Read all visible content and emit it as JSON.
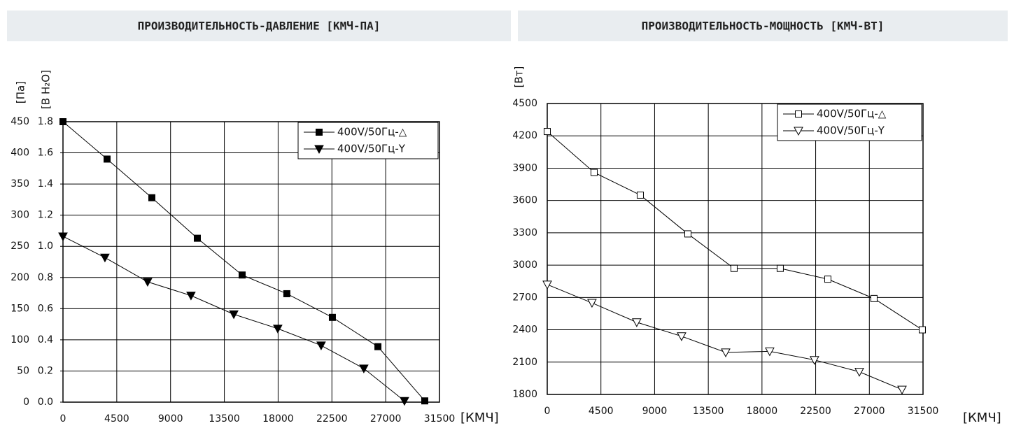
{
  "chart_data": [
    {
      "type": "line",
      "title": "ПРОИЗВОДИТЕЛЬНОСТЬ-ДАВЛЕНИЕ [КМЧ-ПА]",
      "xlabel": "[КМЧ]",
      "ylabel": "[Па]",
      "y2label": "[В H₂O]",
      "xlim": [
        0,
        31500
      ],
      "xticks": [
        0,
        4500,
        9000,
        13500,
        18000,
        22500,
        27000,
        31500
      ],
      "ylim": [
        0,
        450
      ],
      "yticks": [
        0,
        50,
        100,
        150,
        200,
        250,
        300,
        350,
        400,
        450
      ],
      "y2lim": [
        0,
        1.8
      ],
      "y2ticks": [
        {
          "value": 0,
          "label": "0.0"
        },
        0.2,
        0.4,
        0.6,
        0.8,
        {
          "value": 1,
          "label": "1.0"
        },
        1.2,
        1.4,
        1.6,
        1.8
      ],
      "grid": true,
      "legend": "upper right",
      "series": [
        {
          "name": "400V/50Гц-△",
          "color": "#000000",
          "marker": "square",
          "filled": true,
          "x": [
            0,
            3690,
            7435,
            11240,
            14990,
            18730,
            22540,
            26350,
            30270
          ],
          "values": [
            450,
            390,
            328,
            263,
            204,
            174,
            136,
            89,
            2
          ]
        },
        {
          "name": "400V/50Гц-Y",
          "color": "#000000",
          "marker": "triangle",
          "filled": true,
          "x": [
            0,
            3510,
            7080,
            10710,
            14290,
            17970,
            21600,
            25170,
            28570
          ],
          "values": [
            266,
            232,
            193,
            171,
            141,
            118,
            91,
            54,
            2
          ]
        }
      ]
    },
    {
      "type": "line",
      "title": "ПРОИЗВОДИТЕЛЬНОСТЬ-МОЩНОСТЬ [КМЧ-ВТ]",
      "xlabel": "[КМЧ]",
      "ylabel": "[Вт]",
      "xlim": [
        0,
        31500
      ],
      "xticks": [
        0,
        4500,
        9000,
        13500,
        18000,
        22500,
        27000,
        31500
      ],
      "ylim": [
        1800,
        4500
      ],
      "yticks": [
        1800,
        2100,
        2400,
        2700,
        3000,
        3300,
        3600,
        3900,
        4200,
        4500
      ],
      "grid": true,
      "legend": "upper right",
      "series": [
        {
          "name": "400V/50Гц-△",
          "color": "#000000",
          "marker": "square",
          "filled": false,
          "x": [
            0,
            3930,
            7800,
            11790,
            15660,
            19530,
            23520,
            27390,
            31440
          ],
          "values": [
            4240,
            3860,
            3650,
            3290,
            2970,
            2970,
            2870,
            2690,
            2400
          ]
        },
        {
          "name": "400V/50Гц-Y",
          "color": "#000000",
          "marker": "triangle",
          "filled": false,
          "x": [
            0,
            3750,
            7500,
            11260,
            14960,
            18650,
            22400,
            26160,
            29740
          ],
          "values": [
            2820,
            2650,
            2470,
            2340,
            2190,
            2200,
            2120,
            2010,
            1845
          ]
        }
      ]
    }
  ]
}
